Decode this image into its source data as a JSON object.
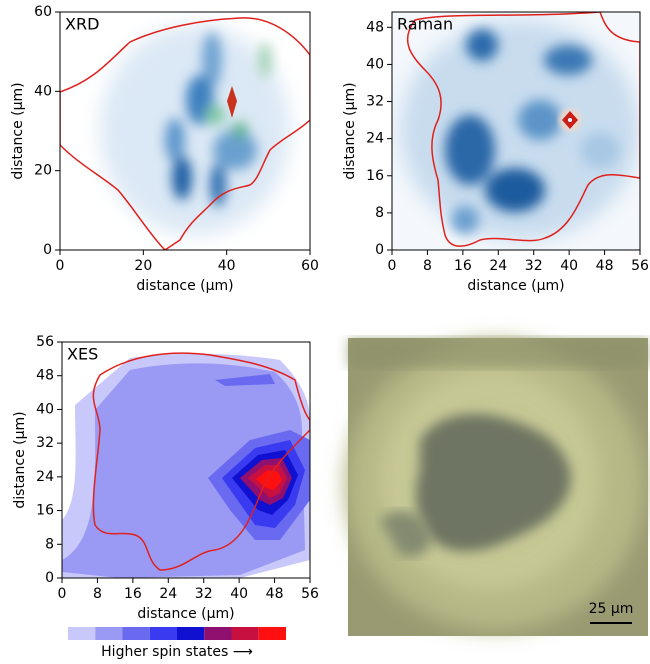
{
  "chart_data": [
    {
      "type": "heatmap",
      "title": "XRD",
      "xlabel": "distance (μm)",
      "ylabel": "distance (μm)",
      "xlim": [
        0,
        60
      ],
      "ylim": [
        0,
        60
      ],
      "xticks": [
        0,
        20,
        40,
        60
      ],
      "yticks": [
        0,
        20,
        40,
        60
      ]
    },
    {
      "type": "heatmap",
      "title": "Raman",
      "xlabel": "distance (μm)",
      "ylabel": "distance (μm)",
      "xlim": [
        0,
        56
      ],
      "ylim": [
        0,
        51.3
      ],
      "xticks": [
        0,
        8,
        16,
        24,
        32,
        40,
        48,
        56
      ],
      "yticks": [
        0,
        8,
        16,
        24,
        32,
        40,
        48
      ]
    },
    {
      "type": "contour",
      "title": "XES",
      "xlabel": "distance (μm)",
      "ylabel": "distance (μm)",
      "xlim": [
        0,
        56
      ],
      "ylim": [
        0,
        56
      ],
      "xticks": [
        0,
        8,
        16,
        24,
        32,
        40,
        48,
        56
      ],
      "yticks": [
        0,
        8,
        16,
        24,
        32,
        40,
        48,
        56
      ]
    }
  ],
  "colorbar": {
    "label": "Higher spin states ⟶",
    "colors": [
      "#c8c8fa",
      "#9a9af5",
      "#6a6af0",
      "#3a3af0",
      "#1010d0",
      "#901070",
      "#c81040",
      "#ff1010"
    ]
  },
  "micrograph": {
    "scale_bar": "25 µm"
  }
}
